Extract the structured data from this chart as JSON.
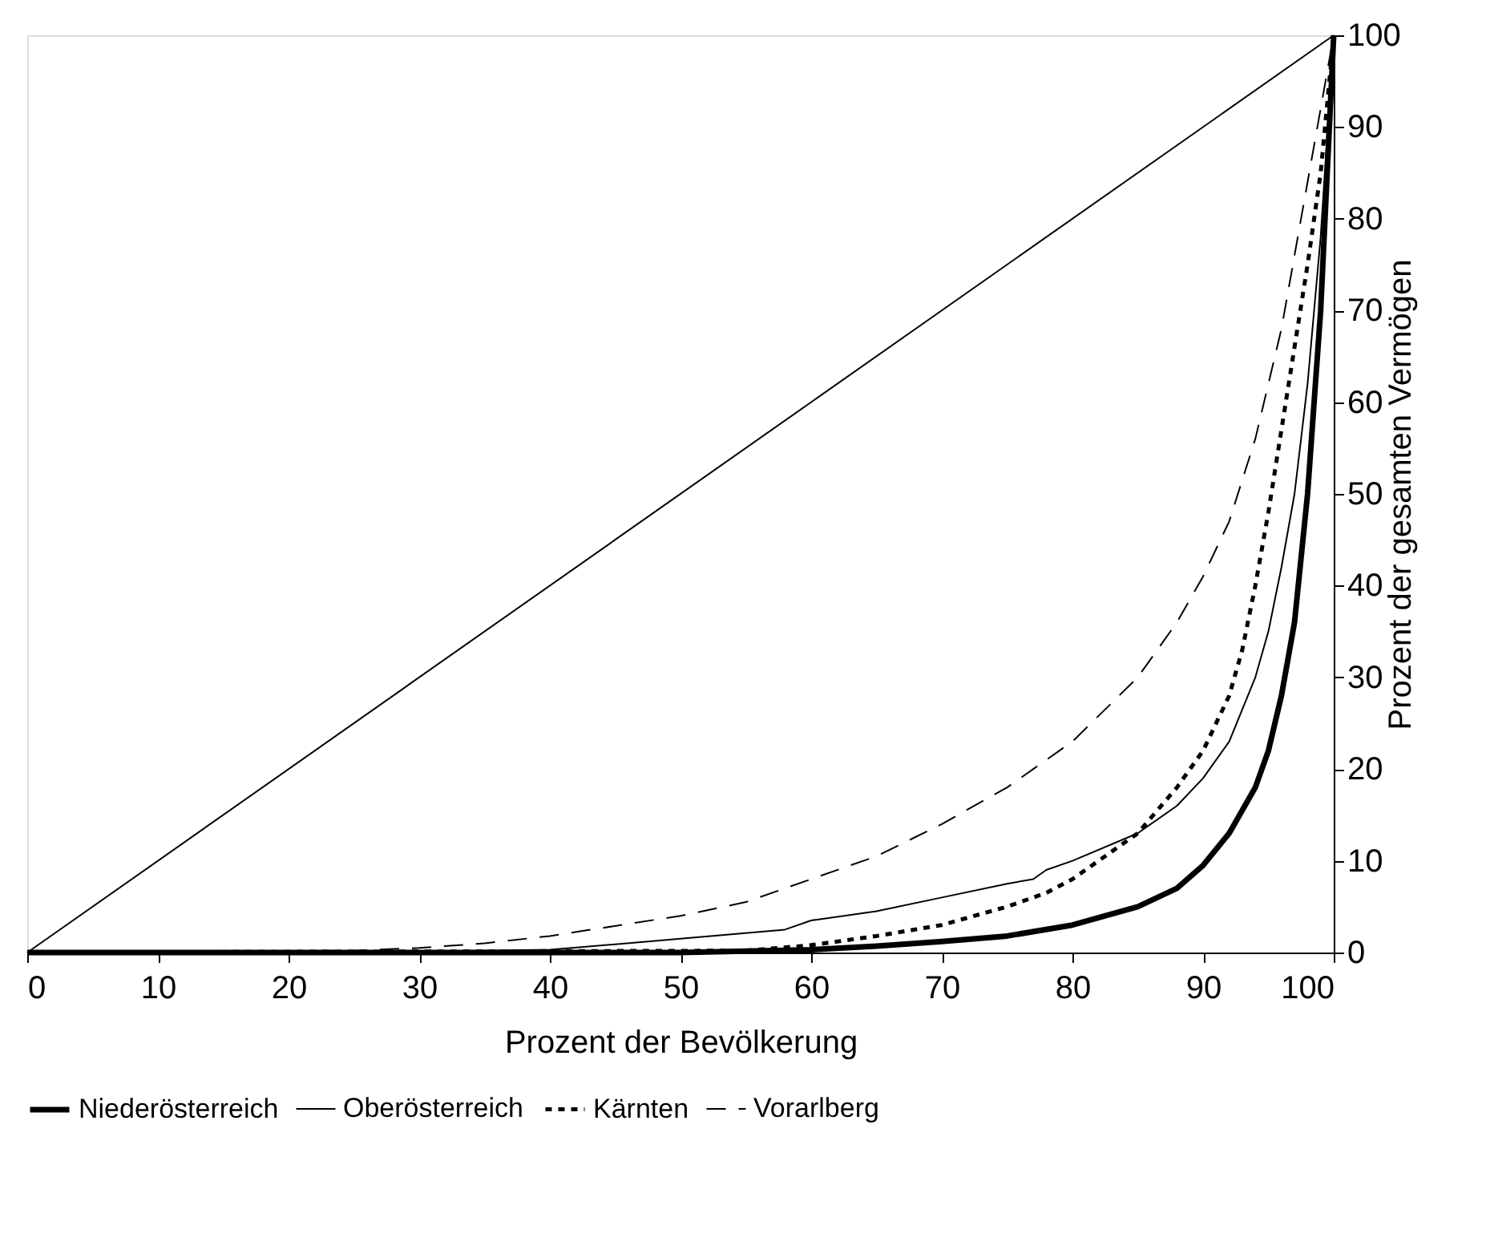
{
  "chart_data": {
    "type": "line",
    "xlabel": "Prozent der Bevölkerung",
    "ylabel": "Prozent der gesamten Vermögen",
    "xlim": [
      0,
      100
    ],
    "ylim": [
      0,
      100
    ],
    "xticks": [
      0,
      10,
      20,
      30,
      40,
      50,
      60,
      70,
      80,
      90,
      100
    ],
    "yticks": [
      0,
      10,
      20,
      30,
      40,
      50,
      60,
      70,
      80,
      90,
      100
    ],
    "grid": false,
    "legend": "bottom",
    "marker": "none",
    "series": [
      {
        "name": "Niederösterreich",
        "color": "#000000",
        "line_style": "solid",
        "x": [
          0,
          50,
          60,
          65,
          70,
          75,
          80,
          85,
          88,
          90,
          92,
          94,
          95,
          96,
          97,
          98,
          99,
          100
        ],
        "values": [
          0,
          0,
          0.3,
          0.7,
          1.2,
          1.8,
          3,
          5,
          7,
          9.5,
          13,
          18,
          22,
          28,
          36,
          50,
          70,
          100
        ]
      },
      {
        "name": "Oberösterreich",
        "color": "#000000",
        "line_style": "solid",
        "x": [
          0,
          30,
          40,
          50,
          58,
          60,
          65,
          70,
          75,
          77,
          78,
          80,
          85,
          88,
          90,
          92,
          94,
          95,
          96,
          97,
          98,
          99,
          100
        ],
        "values": [
          0,
          0.1,
          0.3,
          1.5,
          2.5,
          3.5,
          4.5,
          6,
          7.5,
          8,
          9,
          10,
          13,
          16,
          19,
          23,
          30,
          35,
          42,
          50,
          62,
          78,
          100
        ]
      },
      {
        "name": "Kärnten",
        "color": "#000000",
        "line_style": "dotted",
        "x": [
          0,
          55,
          60,
          65,
          70,
          75,
          78,
          80,
          85,
          88,
          90,
          92,
          93,
          94,
          95,
          96,
          97,
          98,
          99,
          100
        ],
        "values": [
          0,
          0.2,
          0.8,
          1.8,
          3,
          5,
          6.5,
          8,
          13,
          18,
          22,
          28,
          33,
          40,
          48,
          57,
          66,
          75,
          85,
          100
        ]
      },
      {
        "name": "Vorarlberg",
        "color": "#000000",
        "line_style": "dashed",
        "x": [
          0,
          25,
          30,
          35,
          40,
          50,
          55,
          60,
          65,
          70,
          75,
          80,
          85,
          88,
          90,
          92,
          94,
          95,
          96,
          97,
          98,
          99,
          100
        ],
        "values": [
          0,
          0.2,
          0.5,
          1,
          1.8,
          4,
          5.5,
          8,
          10.5,
          14,
          18,
          23,
          30,
          36,
          41,
          47,
          56,
          62,
          68,
          76,
          84,
          92,
          100
        ]
      },
      {
        "color": "#000000",
        "line_style": "solid",
        "x": [
          0,
          100
        ],
        "values": [
          0,
          100
        ]
      }
    ]
  }
}
